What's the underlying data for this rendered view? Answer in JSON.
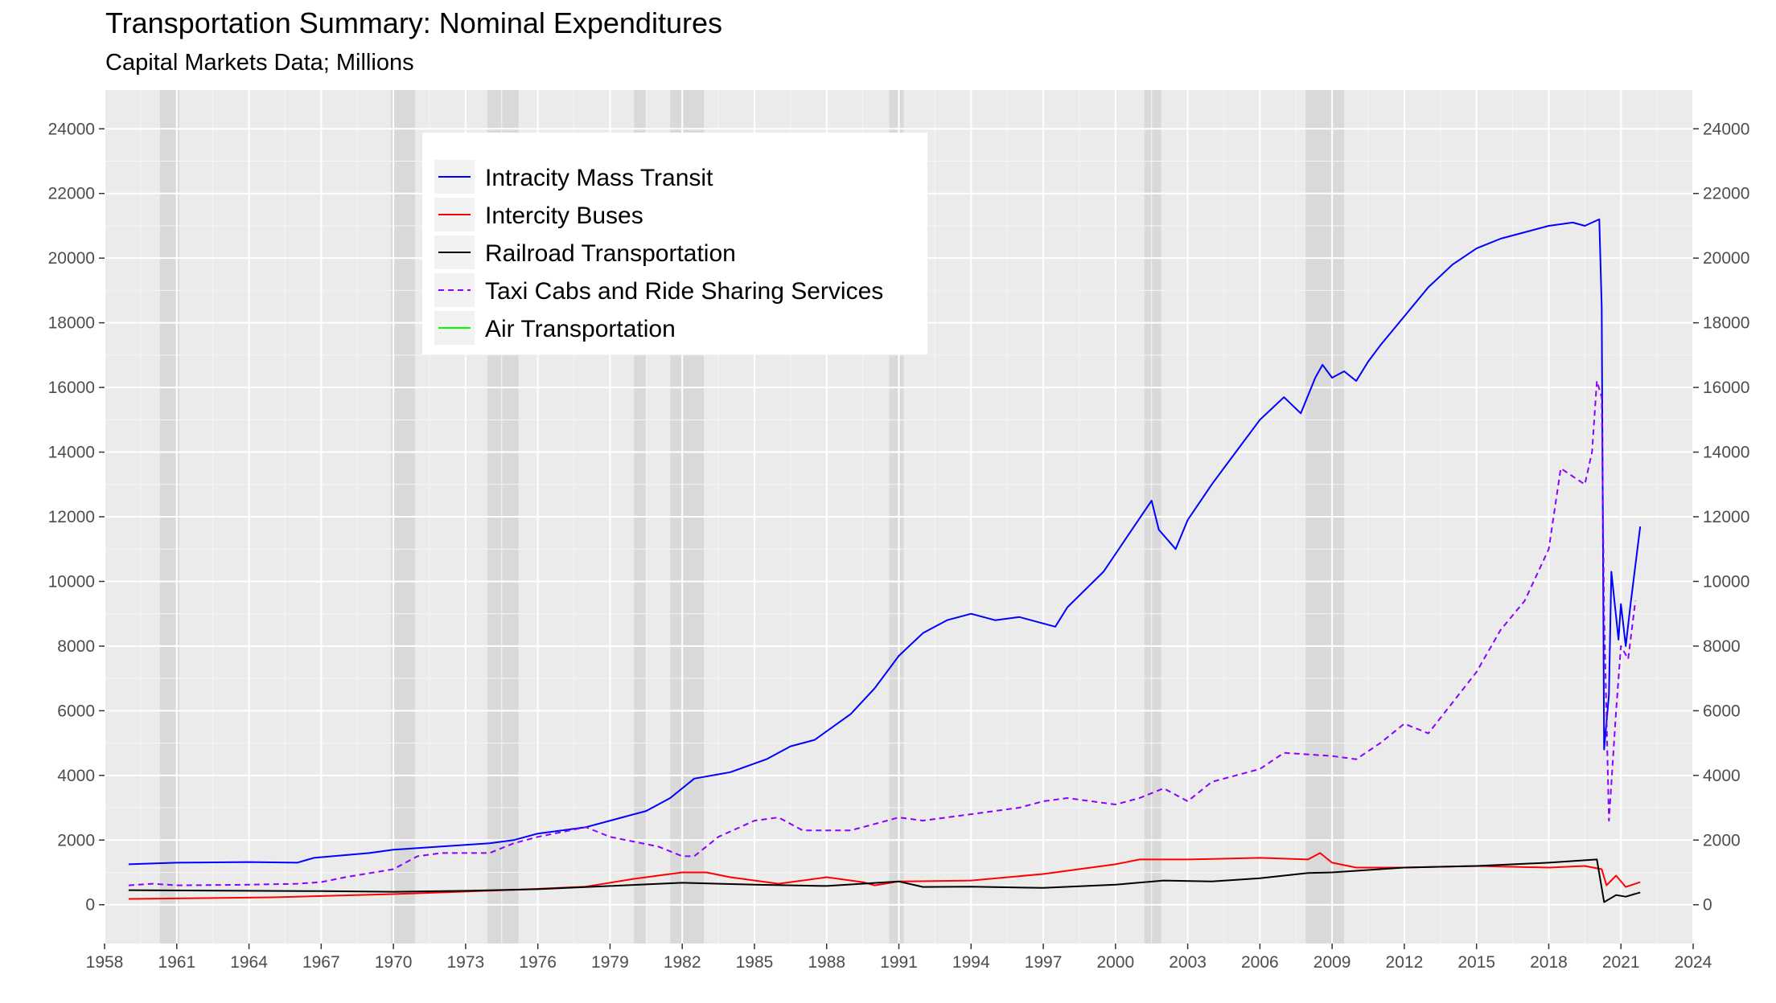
{
  "chart_data": {
    "type": "line",
    "title": "Transportation Summary: Nominal Expenditures",
    "subtitle": "Capital Markets Data; Millions",
    "xlabel": "",
    "ylabel": "",
    "xlim": [
      1958.0,
      2024.0
    ],
    "ylim": [
      -1200,
      25200
    ],
    "x_ticks": [
      1958,
      1961,
      1964,
      1967,
      1970,
      1973,
      1976,
      1979,
      1982,
      1985,
      1988,
      1991,
      1994,
      1997,
      2000,
      2003,
      2006,
      2009,
      2012,
      2015,
      2018,
      2021,
      2024
    ],
    "y_ticks": [
      0,
      2000,
      4000,
      6000,
      8000,
      10000,
      12000,
      14000,
      16000,
      18000,
      20000,
      22000,
      24000
    ],
    "grid": true,
    "secondary_y_axis": true,
    "legend_position": "top-left inside",
    "recession_bands": [
      [
        1960.3,
        1961.1
      ],
      [
        1969.9,
        1970.9
      ],
      [
        1973.9,
        1975.2
      ],
      [
        1980.0,
        1980.5
      ],
      [
        1981.5,
        1982.9
      ],
      [
        1990.6,
        1991.2
      ],
      [
        2001.2,
        2001.9
      ],
      [
        2007.9,
        2009.5
      ]
    ],
    "series": [
      {
        "name": "Intracity Mass Transit",
        "color": "#0000ff",
        "dash": "solid",
        "x": [
          1959.0,
          1961.0,
          1964.0,
          1966.0,
          1966.7,
          1969.0,
          1970.0,
          1972.0,
          1974.0,
          1975.0,
          1976.0,
          1978.0,
          1979.5,
          1980.5,
          1981.5,
          1982.5,
          1984.0,
          1985.5,
          1986.5,
          1987.5,
          1989.0,
          1990.0,
          1991.0,
          1992.0,
          1993.0,
          1994.0,
          1995.0,
          1996.0,
          1997.5,
          1998.0,
          1999.5,
          2000.5,
          2001.5,
          2001.8,
          2002.5,
          2003.0,
          2004.0,
          2005.0,
          2006.0,
          2007.0,
          2007.7,
          2008.3,
          2008.6,
          2009.0,
          2009.5,
          2010.0,
          2010.5,
          2011.0,
          2012.0,
          2013.0,
          2014.0,
          2015.0,
          2016.0,
          2017.0,
          2018.0,
          2019.0,
          2019.5,
          2020.1,
          2020.2,
          2020.3,
          2020.5,
          2020.6,
          2020.9,
          2021.0,
          2021.2,
          2021.4,
          2021.6,
          2021.8
        ],
        "values": [
          1250,
          1300,
          1320,
          1300,
          1450,
          1600,
          1700,
          1800,
          1900,
          2000,
          2200,
          2400,
          2700,
          2900,
          3300,
          3900,
          4100,
          4500,
          4900,
          5100,
          5900,
          6700,
          7700,
          8400,
          8800,
          9000,
          8800,
          8900,
          8600,
          9200,
          10300,
          11400,
          12500,
          11600,
          11000,
          11900,
          13000,
          14000,
          15000,
          15700,
          15200,
          16300,
          16700,
          16300,
          16500,
          16200,
          16800,
          17300,
          18200,
          19100,
          19800,
          20300,
          20600,
          20800,
          21000,
          21100,
          21000,
          21200,
          18500,
          4800,
          6500,
          10300,
          8200,
          9300,
          8000,
          9300,
          10500,
          11700
        ]
      },
      {
        "name": "Intercity Buses",
        "color": "#ff0000",
        "dash": "solid",
        "x": [
          1959.0,
          1965.0,
          1970.0,
          1975.0,
          1978.0,
          1980.0,
          1982.0,
          1983.0,
          1984.0,
          1986.0,
          1988.0,
          1989.5,
          1990.0,
          1991.0,
          1994.0,
          1997.0,
          2000.0,
          2001.0,
          2003.0,
          2006.0,
          2008.0,
          2008.5,
          2009.0,
          2010.0,
          2012.0,
          2015.0,
          2018.0,
          2019.5,
          2020.2,
          2020.4,
          2020.8,
          2021.2,
          2021.8
        ],
        "values": [
          180,
          230,
          330,
          460,
          560,
          800,
          1000,
          1000,
          850,
          650,
          850,
          700,
          600,
          720,
          750,
          950,
          1250,
          1400,
          1400,
          1450,
          1400,
          1600,
          1300,
          1150,
          1150,
          1200,
          1150,
          1200,
          1100,
          600,
          900,
          550,
          700
        ]
      },
      {
        "name": "Railroad Transportation",
        "color": "#000000",
        "dash": "solid",
        "x": [
          1959.0,
          1964.0,
          1967.0,
          1970.0,
          1973.0,
          1976.0,
          1979.0,
          1982.0,
          1985.0,
          1988.0,
          1991.0,
          1992.0,
          1994.0,
          1997.0,
          2000.0,
          2002.0,
          2004.0,
          2006.0,
          2008.0,
          2009.0,
          2010.0,
          2012.0,
          2015.0,
          2018.0,
          2020.0,
          2020.3,
          2020.8,
          2021.2,
          2021.8
        ],
        "values": [
          450,
          430,
          420,
          400,
          430,
          480,
          580,
          680,
          620,
          580,
          720,
          550,
          560,
          520,
          620,
          750,
          720,
          820,
          980,
          1000,
          1050,
          1150,
          1200,
          1300,
          1400,
          80,
          300,
          250,
          380
        ]
      },
      {
        "name": "Taxi Cabs and Ride Sharing Services",
        "color": "#8b00ff",
        "dash": "dashed",
        "x": [
          1959.0,
          1960.0,
          1961.0,
          1964.0,
          1966.0,
          1967.0,
          1968.0,
          1970.0,
          1971.0,
          1972.0,
          1974.0,
          1975.0,
          1976.0,
          1978.0,
          1979.0,
          1981.0,
          1982.0,
          1982.5,
          1983.5,
          1985.0,
          1986.0,
          1987.0,
          1989.0,
          1990.0,
          1991.0,
          1992.0,
          1994.0,
          1996.0,
          1997.0,
          1998.0,
          2000.0,
          2001.0,
          2002.0,
          2003.0,
          2004.0,
          2006.0,
          2007.0,
          2009.0,
          2010.0,
          2011.0,
          2012.0,
          2013.0,
          2015.0,
          2016.0,
          2017.0,
          2018.0,
          2018.5,
          2019.5,
          2019.8,
          2020.0,
          2020.2,
          2020.3,
          2020.5,
          2020.8,
          2021.0,
          2021.3,
          2021.6
        ],
        "values": [
          600,
          650,
          600,
          620,
          650,
          700,
          850,
          1100,
          1500,
          1600,
          1600,
          1900,
          2100,
          2400,
          2100,
          1800,
          1500,
          1500,
          2100,
          2600,
          2700,
          2300,
          2300,
          2500,
          2700,
          2600,
          2800,
          3000,
          3200,
          3300,
          3100,
          3300,
          3600,
          3200,
          3800,
          4200,
          4700,
          4600,
          4500,
          5000,
          5600,
          5300,
          7200,
          8500,
          9400,
          11000,
          13500,
          13000,
          14000,
          16200,
          15700,
          9000,
          2600,
          6000,
          8000,
          7600,
          9400
        ]
      },
      {
        "name": "Air Transportation",
        "color": "#00ff00",
        "dash": "solid",
        "x": [],
        "values": []
      }
    ]
  }
}
